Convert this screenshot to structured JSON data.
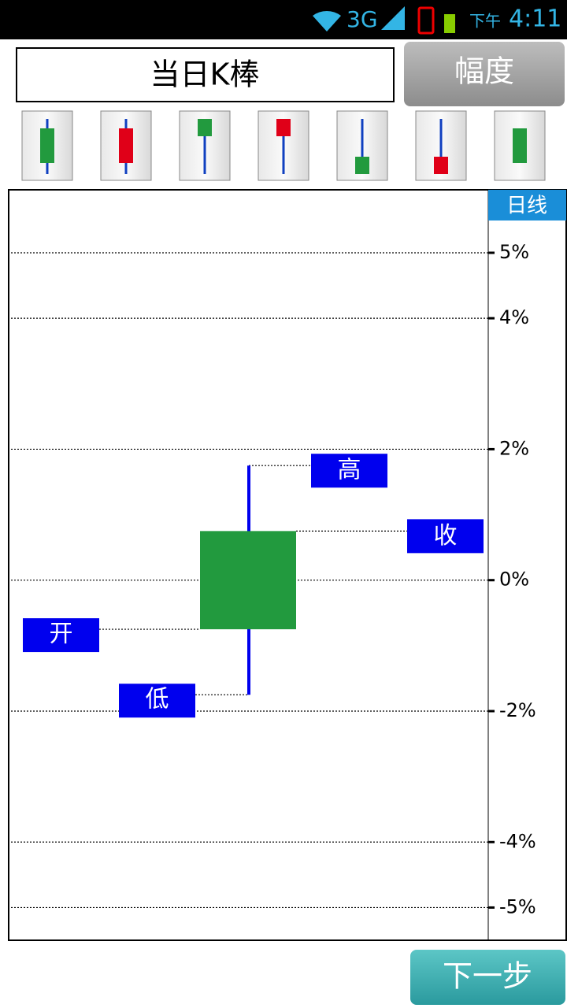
{
  "status_bar": {
    "network": "3G",
    "period": "下午",
    "time": "4:11"
  },
  "header": {
    "title": "当日K棒",
    "button": "幅度"
  },
  "chart_data": {
    "type": "candlestick",
    "period_label": "日线",
    "ylim": [
      -5.5,
      5.95
    ],
    "yticks": [
      {
        "value": 5,
        "label": "5%"
      },
      {
        "value": 4,
        "label": "4%"
      },
      {
        "value": 2,
        "label": "2%"
      },
      {
        "value": 0,
        "label": "0%"
      },
      {
        "value": -2,
        "label": "-2%"
      },
      {
        "value": -4,
        "label": "-4%"
      },
      {
        "value": -5,
        "label": "-5%"
      }
    ],
    "grid": true,
    "open": -0.75,
    "high": 1.75,
    "low": -1.75,
    "close": 0.75,
    "color": "#229a3e",
    "wick_color": "#0000ee",
    "labels": {
      "open": "开",
      "high": "高",
      "low": "低",
      "close": "收"
    }
  },
  "footer": {
    "button": "下一步"
  }
}
